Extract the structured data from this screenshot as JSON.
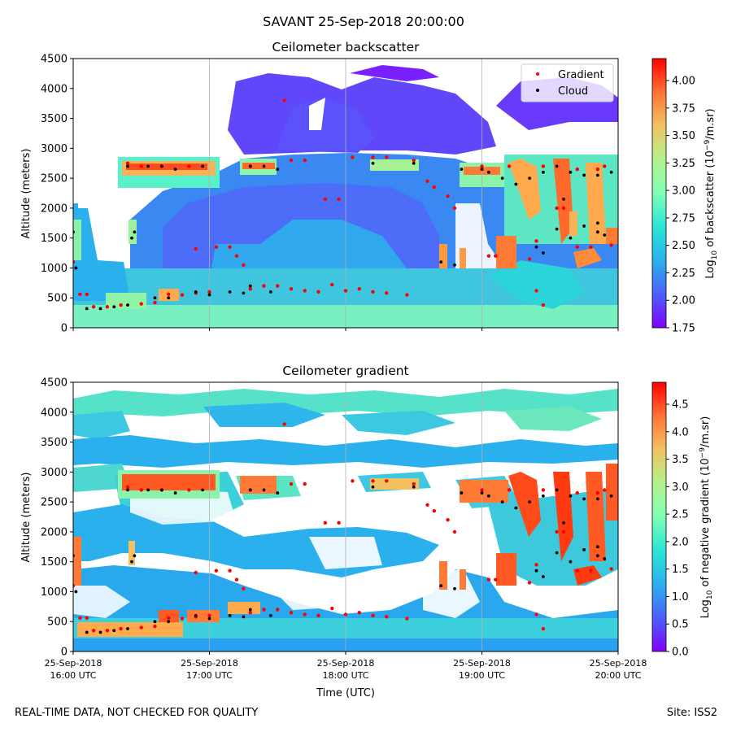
{
  "figure": {
    "suptitle": "SAVANT 25-Sep-2018 20:00:00",
    "footer_left": "REAL-TIME DATA, NOT CHECKED FOR QUALITY",
    "footer_right": "Site: ISS2"
  },
  "chart_data": [
    {
      "type": "heatmap",
      "title": "Ceilometer backscatter",
      "xlabel": "",
      "ylabel": "Altitude (meters)",
      "ylim": [
        0,
        4500
      ],
      "yticks": [
        0,
        500,
        1000,
        1500,
        2000,
        2500,
        3000,
        3500,
        4000,
        4500
      ],
      "xlim_hours_utc": [
        16,
        20
      ],
      "xticks_hours_utc": [
        16,
        17,
        18,
        19,
        20
      ],
      "xtick_labels": [],
      "grid": "vertical",
      "legend_position": "top-right",
      "legend": [
        "Gradient",
        "Cloud"
      ],
      "colormap": "rainbow",
      "colorbar": {
        "label_pre": "Log",
        "label_sub": "10",
        "label_mid": " of backscatter (10",
        "label_sup": "−9",
        "label_post": "/m.sr)",
        "range": [
          1.75,
          4.2
        ],
        "ticks": [
          1.75,
          2.0,
          2.25,
          2.5,
          2.75,
          3.0,
          3.25,
          3.5,
          3.75,
          4.0
        ],
        "tick_labels": [
          "1.75",
          "2.00",
          "2.25",
          "2.50",
          "2.75",
          "3.00",
          "3.25",
          "3.50",
          "3.75",
          "4.00"
        ]
      },
      "series": [
        {
          "name": "Gradient",
          "color": "#ff0000",
          "points": [
            [
              16.0,
              1100
            ],
            [
              16.05,
              560
            ],
            [
              16.1,
              560
            ],
            [
              16.15,
              350
            ],
            [
              16.25,
              350
            ],
            [
              16.35,
              380
            ],
            [
              16.5,
              400
            ],
            [
              16.6,
              420
            ],
            [
              16.7,
              560
            ],
            [
              16.8,
              550
            ],
            [
              16.9,
              580
            ],
            [
              17.0,
              600
            ],
            [
              17.05,
              1350
            ],
            [
              17.15,
              1350
            ],
            [
              17.2,
              1200
            ],
            [
              17.25,
              1050
            ],
            [
              17.3,
              650
            ],
            [
              17.4,
              700
            ],
            [
              17.5,
              700
            ],
            [
              17.6,
              650
            ],
            [
              17.7,
              620
            ],
            [
              17.8,
              600
            ],
            [
              17.9,
              720
            ],
            [
              18.0,
              620
            ],
            [
              18.1,
              650
            ],
            [
              18.2,
              600
            ],
            [
              18.3,
              580
            ],
            [
              18.45,
              550
            ],
            [
              18.3,
              2850
            ],
            [
              18.5,
              2800
            ],
            [
              17.6,
              2800
            ],
            [
              17.7,
              2800
            ],
            [
              17.85,
              2150
            ],
            [
              17.95,
              2150
            ],
            [
              17.55,
              3800
            ],
            [
              16.4,
              2750
            ],
            [
              16.5,
              2700
            ],
            [
              16.65,
              2700
            ],
            [
              16.85,
              2700
            ],
            [
              16.9,
              1320
            ],
            [
              17.3,
              2700
            ],
            [
              18.05,
              2850
            ],
            [
              18.2,
              2850
            ],
            [
              18.6,
              2450
            ],
            [
              18.65,
              2350
            ],
            [
              18.75,
              2200
            ],
            [
              18.8,
              2000
            ],
            [
              19.05,
              1200
            ],
            [
              19.1,
              1200
            ],
            [
              19.0,
              2700
            ],
            [
              19.2,
              2700
            ],
            [
              19.4,
              1450
            ],
            [
              19.35,
              1150
            ],
            [
              19.55,
              2000
            ],
            [
              19.6,
              2000
            ],
            [
              19.7,
              1350
            ],
            [
              19.8,
              1350
            ],
            [
              19.95,
              1380
            ],
            [
              19.4,
              620
            ],
            [
              19.45,
              380
            ],
            [
              19.45,
              2700
            ],
            [
              19.7,
              2650
            ],
            [
              19.85,
              2650
            ],
            [
              19.9,
              2700
            ]
          ]
        },
        {
          "name": "Cloud",
          "color": "#000000",
          "points": [
            [
              16.0,
              1600
            ],
            [
              16.02,
              1000
            ],
            [
              16.1,
              320
            ],
            [
              16.2,
              320
            ],
            [
              16.3,
              350
            ],
            [
              16.4,
              380
            ],
            [
              16.6,
              500
            ],
            [
              16.7,
              500
            ],
            [
              16.4,
              2700
            ],
            [
              16.55,
              2700
            ],
            [
              16.65,
              2700
            ],
            [
              16.75,
              2650
            ],
            [
              16.95,
              2700
            ],
            [
              17.3,
              2700
            ],
            [
              17.4,
              2700
            ],
            [
              17.5,
              2650
            ],
            [
              16.45,
              1600
            ],
            [
              16.43,
              1500
            ],
            [
              16.9,
              600
            ],
            [
              17.0,
              550
            ],
            [
              17.15,
              600
            ],
            [
              17.25,
              580
            ],
            [
              17.3,
              700
            ],
            [
              17.45,
              600
            ],
            [
              18.2,
              2750
            ],
            [
              18.5,
              2750
            ],
            [
              18.7,
              1100
            ],
            [
              18.8,
              1050
            ],
            [
              18.85,
              2650
            ],
            [
              19.0,
              2650
            ],
            [
              19.05,
              2600
            ],
            [
              19.15,
              2500
            ],
            [
              19.25,
              2400
            ],
            [
              19.35,
              2500
            ],
            [
              19.45,
              2600
            ],
            [
              19.55,
              2700
            ],
            [
              19.65,
              2600
            ],
            [
              19.75,
              2550
            ],
            [
              19.85,
              2550
            ],
            [
              19.95,
              2600
            ],
            [
              19.4,
              1350
            ],
            [
              19.45,
              1250
            ],
            [
              19.55,
              1650
            ],
            [
              19.75,
              1700
            ],
            [
              19.85,
              1600
            ],
            [
              19.9,
              1550
            ],
            [
              19.6,
              2150
            ],
            [
              19.65,
              1500
            ],
            [
              19.85,
              1750
            ]
          ]
        }
      ]
    },
    {
      "type": "heatmap",
      "title": "Ceilometer gradient",
      "xlabel": "Time (UTC)",
      "ylabel": "Altitude (meters)",
      "ylim": [
        0,
        4500
      ],
      "yticks": [
        0,
        500,
        1000,
        1500,
        2000,
        2500,
        3000,
        3500,
        4000,
        4500
      ],
      "xlim_hours_utc": [
        16,
        20
      ],
      "xticks_hours_utc": [
        16,
        17,
        18,
        19,
        20
      ],
      "xtick_labels": [
        [
          "25-Sep-2018",
          "16:00 UTC"
        ],
        [
          "25-Sep-2018",
          "17:00 UTC"
        ],
        [
          "25-Sep-2018",
          "18:00 UTC"
        ],
        [
          "25-Sep-2018",
          "19:00 UTC"
        ],
        [
          "25-Sep-2018",
          "20:00 UTC"
        ]
      ],
      "grid": "vertical",
      "colormap": "rainbow",
      "colorbar": {
        "label_pre": "Log",
        "label_sub": "10",
        "label_mid": " of negative gradient (10",
        "label_sup": "−9",
        "label_post": "/m.sr)",
        "range": [
          0.0,
          4.9
        ],
        "ticks": [
          0.0,
          0.5,
          1.0,
          1.5,
          2.0,
          2.5,
          3.0,
          3.5,
          4.0,
          4.5
        ],
        "tick_labels": [
          "0.0",
          "0.5",
          "1.0",
          "1.5",
          "2.0",
          "2.5",
          "3.0",
          "3.5",
          "4.0",
          "4.5"
        ]
      },
      "series": [
        {
          "name": "Gradient",
          "color": "#ff0000",
          "points": [
            [
              16.0,
              1100
            ],
            [
              16.05,
              560
            ],
            [
              16.1,
              560
            ],
            [
              16.15,
              350
            ],
            [
              16.25,
              350
            ],
            [
              16.35,
              380
            ],
            [
              16.5,
              400
            ],
            [
              16.6,
              420
            ],
            [
              16.7,
              560
            ],
            [
              16.8,
              550
            ],
            [
              16.9,
              580
            ],
            [
              17.0,
              600
            ],
            [
              17.05,
              1350
            ],
            [
              17.15,
              1350
            ],
            [
              17.2,
              1200
            ],
            [
              17.25,
              1050
            ],
            [
              17.3,
              650
            ],
            [
              17.4,
              700
            ],
            [
              17.5,
              700
            ],
            [
              17.6,
              650
            ],
            [
              17.7,
              620
            ],
            [
              17.8,
              600
            ],
            [
              17.9,
              720
            ],
            [
              18.0,
              620
            ],
            [
              18.1,
              650
            ],
            [
              18.2,
              600
            ],
            [
              18.3,
              580
            ],
            [
              18.45,
              550
            ],
            [
              18.3,
              2850
            ],
            [
              18.5,
              2800
            ],
            [
              17.6,
              2800
            ],
            [
              17.7,
              2800
            ],
            [
              17.85,
              2150
            ],
            [
              17.95,
              2150
            ],
            [
              17.55,
              3800
            ],
            [
              16.4,
              2750
            ],
            [
              16.5,
              2700
            ],
            [
              16.65,
              2700
            ],
            [
              16.85,
              2700
            ],
            [
              16.9,
              1320
            ],
            [
              17.3,
              2700
            ],
            [
              18.05,
              2850
            ],
            [
              18.2,
              2850
            ],
            [
              18.6,
              2450
            ],
            [
              18.65,
              2350
            ],
            [
              18.75,
              2200
            ],
            [
              18.8,
              2000
            ],
            [
              19.05,
              1200
            ],
            [
              19.1,
              1200
            ],
            [
              19.0,
              2700
            ],
            [
              19.2,
              2700
            ],
            [
              19.4,
              1450
            ],
            [
              19.35,
              1150
            ],
            [
              19.55,
              2000
            ],
            [
              19.6,
              2000
            ],
            [
              19.7,
              1350
            ],
            [
              19.8,
              1350
            ],
            [
              19.95,
              1380
            ],
            [
              19.4,
              620
            ],
            [
              19.45,
              380
            ],
            [
              19.45,
              2700
            ],
            [
              19.7,
              2650
            ],
            [
              19.85,
              2650
            ],
            [
              19.9,
              2700
            ]
          ]
        },
        {
          "name": "Cloud",
          "color": "#000000",
          "points": [
            [
              16.0,
              1600
            ],
            [
              16.02,
              1000
            ],
            [
              16.1,
              320
            ],
            [
              16.2,
              320
            ],
            [
              16.3,
              350
            ],
            [
              16.4,
              380
            ],
            [
              16.6,
              500
            ],
            [
              16.7,
              500
            ],
            [
              16.4,
              2700
            ],
            [
              16.55,
              2700
            ],
            [
              16.65,
              2700
            ],
            [
              16.75,
              2650
            ],
            [
              16.95,
              2700
            ],
            [
              17.3,
              2700
            ],
            [
              17.4,
              2700
            ],
            [
              17.5,
              2650
            ],
            [
              16.45,
              1600
            ],
            [
              16.43,
              1500
            ],
            [
              16.9,
              600
            ],
            [
              17.0,
              550
            ],
            [
              17.15,
              600
            ],
            [
              17.25,
              580
            ],
            [
              17.3,
              700
            ],
            [
              17.45,
              600
            ],
            [
              18.2,
              2750
            ],
            [
              18.5,
              2750
            ],
            [
              18.7,
              1100
            ],
            [
              18.8,
              1050
            ],
            [
              18.85,
              2650
            ],
            [
              19.0,
              2650
            ],
            [
              19.05,
              2600
            ],
            [
              19.15,
              2500
            ],
            [
              19.25,
              2400
            ],
            [
              19.35,
              2500
            ],
            [
              19.45,
              2600
            ],
            [
              19.55,
              2700
            ],
            [
              19.65,
              2600
            ],
            [
              19.75,
              2550
            ],
            [
              19.85,
              2550
            ],
            [
              19.95,
              2600
            ],
            [
              19.4,
              1350
            ],
            [
              19.45,
              1250
            ],
            [
              19.55,
              1650
            ],
            [
              19.75,
              1700
            ],
            [
              19.85,
              1600
            ],
            [
              19.9,
              1550
            ],
            [
              19.6,
              2150
            ],
            [
              19.65,
              1500
            ],
            [
              19.85,
              1750
            ]
          ]
        }
      ]
    }
  ]
}
